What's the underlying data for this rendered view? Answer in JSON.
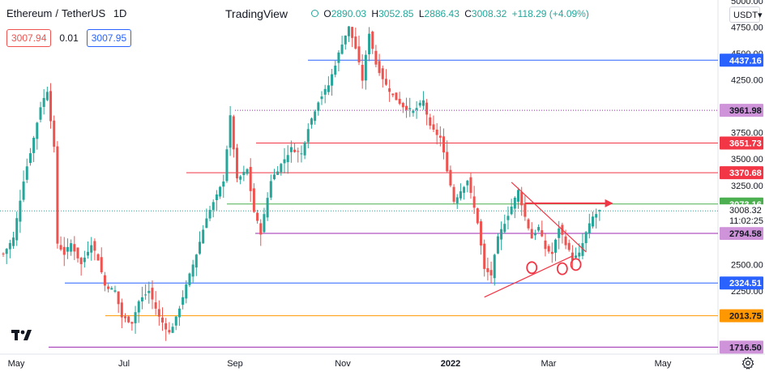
{
  "header": {
    "symbol": "Ethereum",
    "quote": "TetherUS",
    "separator": "/",
    "timeframe": "1D",
    "brand": "TradingView"
  },
  "ohlc": {
    "open_label": "O",
    "open": "2890.03",
    "high_label": "H",
    "high": "3052.85",
    "low_label": "L",
    "low": "2886.43",
    "close_label": "C",
    "close": "3008.32",
    "change": "+118.29 (+4.09%)"
  },
  "trade": {
    "sell_price": "3007.94",
    "spread": "0.01",
    "buy_price": "3007.95"
  },
  "currency_selector": "USDT▾",
  "icons": {
    "logo": "tradingview-logo-icon",
    "settings": "gear-icon"
  },
  "chart_data": {
    "type": "candlestick",
    "x_axis_labels": [
      "May",
      "Jul",
      "Sep",
      "Nov",
      "2022",
      "Mar",
      "May"
    ],
    "y_axis_ticks": [
      5000,
      4750,
      4500,
      4250,
      3750,
      3500,
      3250,
      2500,
      2250
    ],
    "ylim": [
      1600,
      5000
    ],
    "current_price": 3008.32,
    "countdown": "11:02:25",
    "price_levels": [
      {
        "value": 4437.16,
        "label": "4437.16",
        "color": "#2962ff",
        "style": "solid"
      },
      {
        "value": 3961.98,
        "label": "3961.98",
        "color": "#9c27b0",
        "style": "dotted"
      },
      {
        "value": 3651.73,
        "label": "3651.73",
        "color": "#f23645",
        "style": "solid"
      },
      {
        "value": 3370.68,
        "label": "3370.68",
        "color": "#f23645",
        "style": "solid"
      },
      {
        "value": 3073.16,
        "label": "3073.16",
        "color": "#4caf50",
        "style": "solid"
      },
      {
        "value": 2794.58,
        "label": "2794.58",
        "color": "#9c27b0",
        "style": "solid"
      },
      {
        "value": 2324.51,
        "label": "2324.51",
        "color": "#2962ff",
        "style": "solid"
      },
      {
        "value": 2013.75,
        "label": "2013.75",
        "color": "#ff9800",
        "style": "solid"
      },
      {
        "value": 1716.5,
        "label": "1716.50",
        "color": "#9c27b0",
        "style": "solid"
      }
    ],
    "label_colors": {
      "4437.16": "#2962ff",
      "3961.98": "#ce93d8",
      "3651.73": "#f23645",
      "3370.68": "#f23645",
      "3073.16": "#4caf50",
      "2794.58": "#ce93d8",
      "2324.51": "#2962ff",
      "2013.75": "#ff9800",
      "1716.50": "#ce93d8"
    },
    "series_trace": [
      [
        0,
        2600
      ],
      [
        3,
        2750
      ],
      [
        6,
        3300
      ],
      [
        9,
        3700
      ],
      [
        11,
        4000
      ],
      [
        13,
        4150
      ],
      [
        15,
        3600
      ],
      [
        16,
        2700
      ],
      [
        18,
        2600
      ],
      [
        20,
        2700
      ],
      [
        23,
        2500
      ],
      [
        26,
        2700
      ],
      [
        28,
        2550
      ],
      [
        30,
        2300
      ],
      [
        33,
        2250
      ],
      [
        35,
        2000
      ],
      [
        38,
        1950
      ],
      [
        40,
        2150
      ],
      [
        43,
        2250
      ],
      [
        46,
        2000
      ],
      [
        49,
        1850
      ],
      [
        51,
        1990
      ],
      [
        54,
        2300
      ],
      [
        57,
        2600
      ],
      [
        60,
        2950
      ],
      [
        63,
        3150
      ],
      [
        65,
        3300
      ],
      [
        67,
        3900
      ],
      [
        69,
        3300
      ],
      [
        72,
        3400
      ],
      [
        74,
        3000
      ],
      [
        76,
        2800
      ],
      [
        79,
        3300
      ],
      [
        82,
        3450
      ],
      [
        85,
        3600
      ],
      [
        88,
        3550
      ],
      [
        90,
        3800
      ],
      [
        93,
        4050
      ],
      [
        96,
        4200
      ],
      [
        98,
        4400
      ],
      [
        100,
        4600
      ],
      [
        102,
        4750
      ],
      [
        104,
        4550
      ],
      [
        106,
        4250
      ],
      [
        108,
        4700
      ],
      [
        110,
        4400
      ],
      [
        113,
        4200
      ],
      [
        115,
        4100
      ],
      [
        118,
        4000
      ],
      [
        121,
        3950
      ],
      [
        124,
        4050
      ],
      [
        126,
        3800
      ],
      [
        129,
        3700
      ],
      [
        131,
        3400
      ],
      [
        133,
        3100
      ],
      [
        135,
        3200
      ],
      [
        137,
        3300
      ],
      [
        140,
        2900
      ],
      [
        142,
        2450
      ],
      [
        144,
        2400
      ],
      [
        146,
        2750
      ],
      [
        148,
        2900
      ],
      [
        150,
        3050
      ],
      [
        152,
        3200
      ],
      [
        154,
        2950
      ],
      [
        156,
        2750
      ],
      [
        158,
        2850
      ],
      [
        160,
        2650
      ],
      [
        162,
        2600
      ],
      [
        164,
        2850
      ],
      [
        166,
        2700
      ],
      [
        168,
        2550
      ],
      [
        170,
        2600
      ],
      [
        172,
        2800
      ],
      [
        174,
        2950
      ],
      [
        176,
        3008
      ]
    ],
    "x_max_index": 210,
    "annotations": [
      {
        "type": "trendline",
        "from": [
          142,
          2190
        ],
        "to": [
          168,
          2580
        ],
        "color": "#f23645"
      },
      {
        "type": "trendline",
        "from": [
          150,
          3280
        ],
        "to": [
          172,
          2620
        ],
        "color": "#f23645"
      },
      {
        "type": "arrow",
        "from": [
          154,
          3080
        ],
        "to": [
          180,
          3080
        ],
        "color": "#f23645"
      },
      {
        "type": "ellipse",
        "at": [
          156,
          2470
        ],
        "color": "#f23645"
      },
      {
        "type": "ellipse",
        "at": [
          165,
          2460
        ],
        "color": "#f23645"
      },
      {
        "type": "ellipse",
        "at": [
          169,
          2500
        ],
        "color": "#f23645"
      }
    ]
  }
}
